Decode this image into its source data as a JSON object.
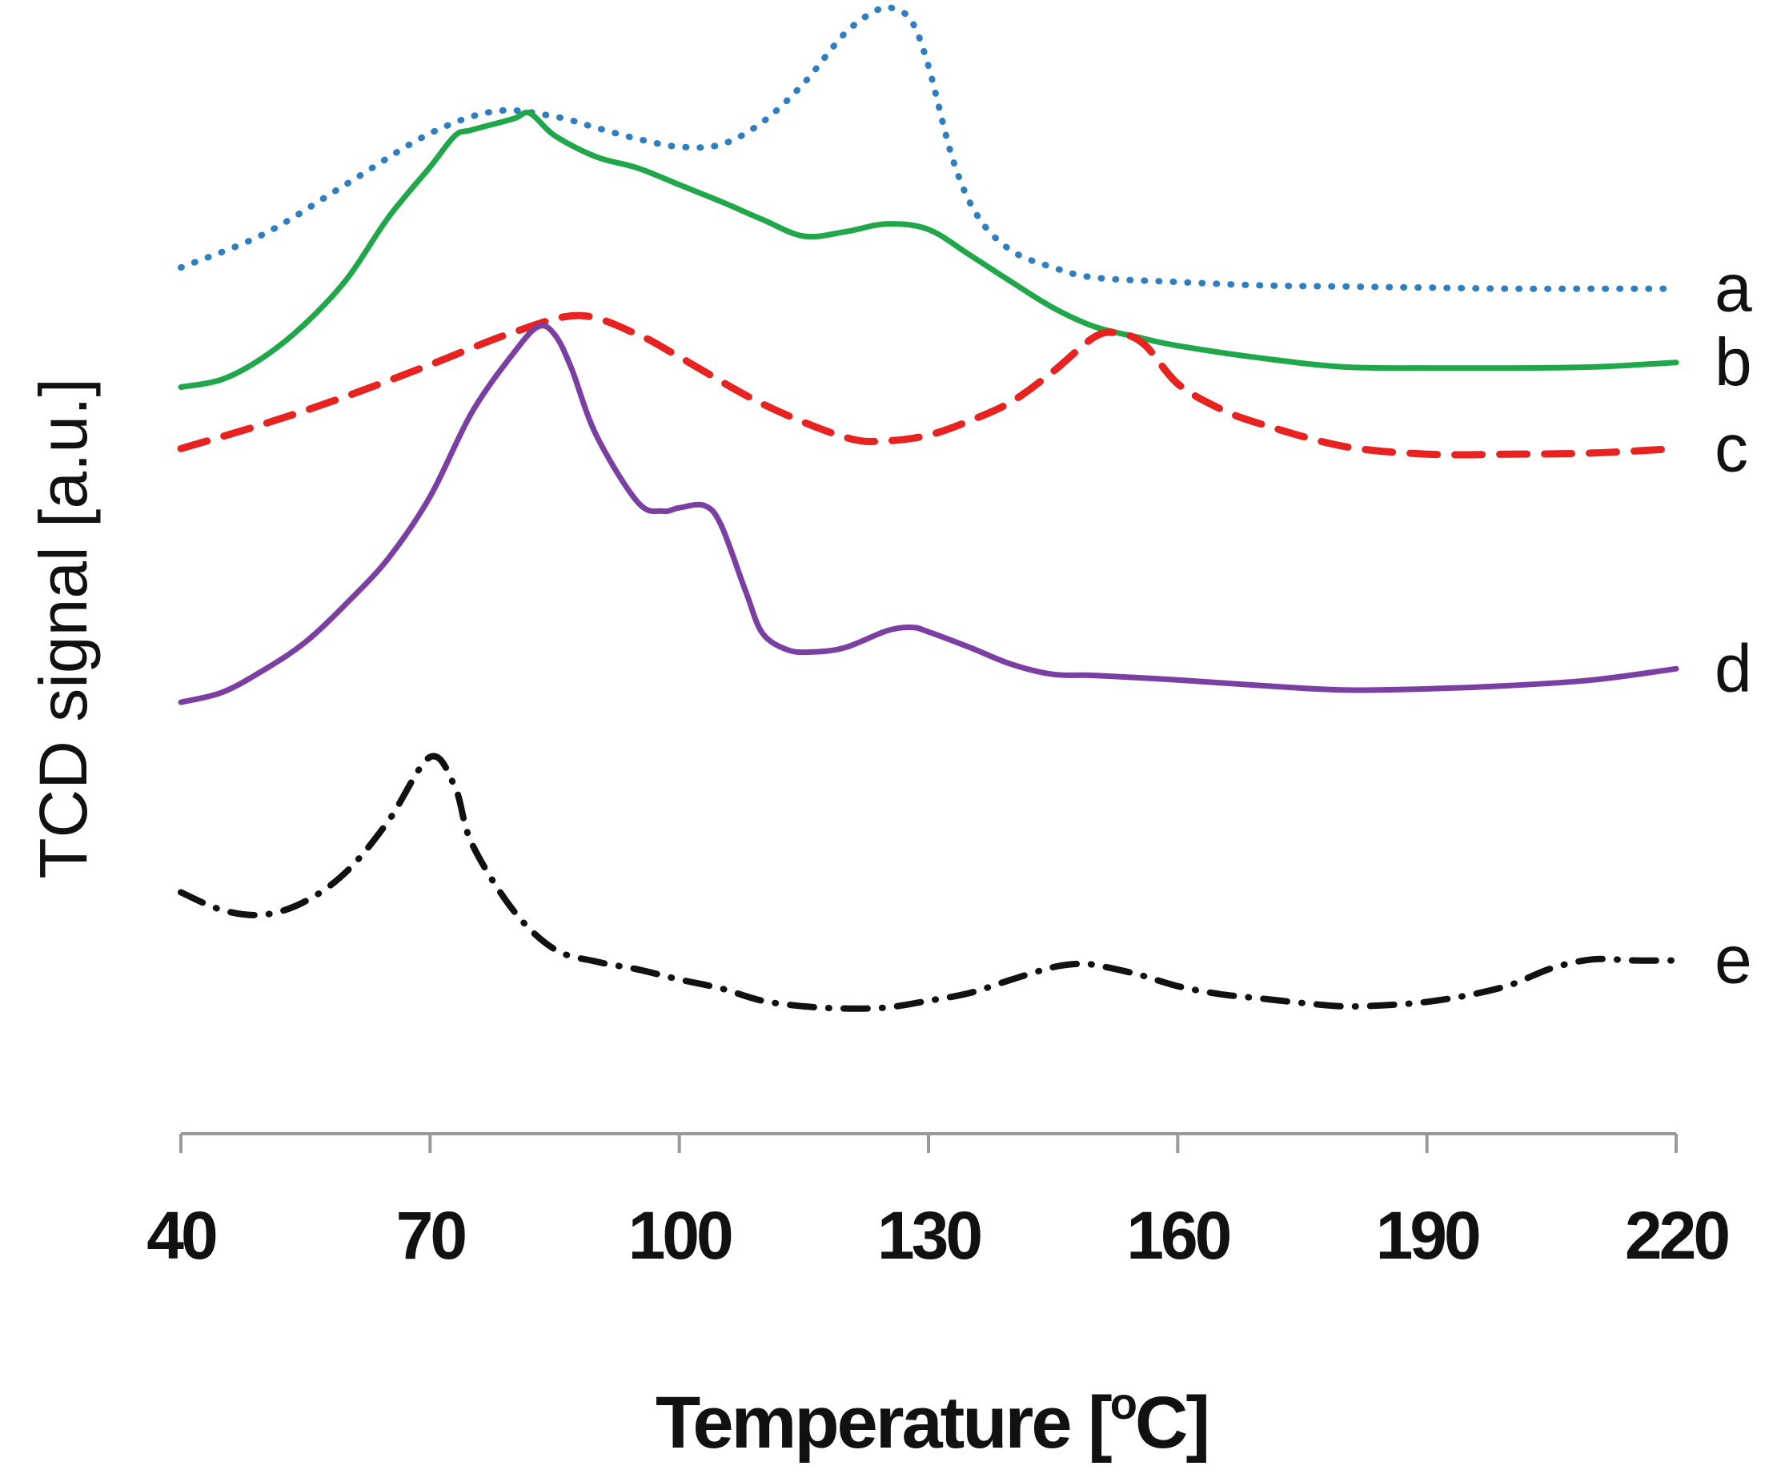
{
  "chart_data": {
    "type": "line",
    "title": "",
    "xlabel_prefix": "Temperature [",
    "xlabel_sup": "o",
    "xlabel_suffix": "C]",
    "ylabel": "TCD signal [a.u.]",
    "xlim": [
      40,
      220
    ],
    "ylim": [
      0,
      100
    ],
    "xticks": [
      "40",
      "70",
      "100",
      "130",
      "160",
      "190",
      "220"
    ],
    "grid": false,
    "series": [
      {
        "name": "a",
        "color": "#2E7EC1",
        "style": "dotted",
        "x": [
          40,
          50,
          60,
          70,
          78,
          85,
          90,
          95,
          100,
          105,
          110,
          115,
          120,
          124,
          126,
          128,
          130,
          133,
          136,
          140,
          145,
          150,
          160,
          170,
          180,
          190,
          200,
          210,
          220
        ],
        "y": [
          77.5,
          80.5,
          85,
          89.5,
          91.5,
          91,
          90,
          89,
          88.3,
          88.5,
          90.5,
          94,
          98.5,
          100.6,
          100.6,
          99.5,
          95.5,
          87,
          82,
          79,
          77.5,
          76.6,
          76.2,
          75.9,
          75.8,
          75.7,
          75.6,
          75.6,
          75.6
        ]
      },
      {
        "name": "b",
        "color": "#1FA74A",
        "style": "solid",
        "x": [
          40,
          45,
          50,
          55,
          60,
          65,
          70,
          73,
          75,
          80,
          82,
          85,
          90,
          95,
          100,
          105,
          110,
          115,
          120,
          125,
          130,
          135,
          140,
          145,
          150,
          155,
          160,
          170,
          180,
          190,
          200,
          210,
          220
        ],
        "y": [
          66.8,
          67.5,
          69.5,
          72.5,
          76.5,
          82,
          86.5,
          89.3,
          89.8,
          90.8,
          91.3,
          89.3,
          87.4,
          86.4,
          84.9,
          83.4,
          81.8,
          80.3,
          80.7,
          81.4,
          80.9,
          78.6,
          76.2,
          73.9,
          72.2,
          71.3,
          70.5,
          69.4,
          68.6,
          68.5,
          68.5,
          68.6,
          69
        ]
      },
      {
        "name": "c",
        "color": "#E8231F",
        "style": "dashed",
        "x": [
          40,
          50,
          60,
          70,
          80,
          88,
          95,
          100,
          110,
          120,
          125,
          130,
          135,
          140,
          145,
          150,
          153,
          156,
          160,
          165,
          170,
          180,
          190,
          200,
          210,
          220
        ],
        "y": [
          61.3,
          63.5,
          66,
          68.8,
          71.7,
          73.2,
          71.5,
          69.5,
          65.3,
          62.3,
          62,
          62.5,
          63.8,
          65.5,
          68.2,
          71.3,
          71.6,
          70.6,
          67.1,
          64.9,
          63.5,
          61.5,
          60.8,
          60.8,
          60.9,
          61.3
        ]
      },
      {
        "name": "d",
        "color": "#7B3FA3",
        "style": "solid",
        "x": [
          40,
          45,
          50,
          55,
          60,
          65,
          70,
          75,
          80,
          83,
          85,
          87,
          90,
          95,
          98,
          100,
          103,
          105,
          108,
          110,
          113,
          116,
          120,
          125,
          128,
          130,
          135,
          140,
          145,
          150,
          160,
          170,
          180,
          190,
          200,
          210,
          220
        ],
        "y": [
          38.6,
          39.5,
          41.5,
          44,
          47.5,
          51.5,
          57,
          64.5,
          69.8,
          72.2,
          71.5,
          68.5,
          62.5,
          56.5,
          55.7,
          56,
          56.2,
          54.5,
          48.5,
          44.8,
          43.3,
          43.1,
          43.5,
          45,
          45.3,
          44.9,
          43.5,
          42,
          41.1,
          41,
          40.6,
          40.1,
          39.7,
          39.8,
          40.1,
          40.6,
          41.6
        ]
      },
      {
        "name": "e",
        "color": "#111111",
        "style": "dashdot",
        "x": [
          40,
          45,
          50,
          55,
          60,
          65,
          70,
          73,
          75,
          80,
          85,
          90,
          95,
          100,
          105,
          110,
          115,
          120,
          125,
          130,
          135,
          140,
          145,
          148,
          150,
          155,
          160,
          165,
          170,
          175,
          180,
          185,
          190,
          195,
          200,
          205,
          210,
          215,
          220
        ],
        "y": [
          21.6,
          20,
          19.6,
          20.8,
          23.5,
          28,
          33.7,
          31,
          26,
          20,
          16.5,
          15.4,
          14.7,
          13.8,
          13,
          11.9,
          11.4,
          11.2,
          11.3,
          11.9,
          12.6,
          13.8,
          14.9,
          15.2,
          15.1,
          14.3,
          13.2,
          12.5,
          12.1,
          11.7,
          11.4,
          11.5,
          11.8,
          12.4,
          13.3,
          14.8,
          15.6,
          15.5,
          15.5
        ]
      }
    ]
  }
}
